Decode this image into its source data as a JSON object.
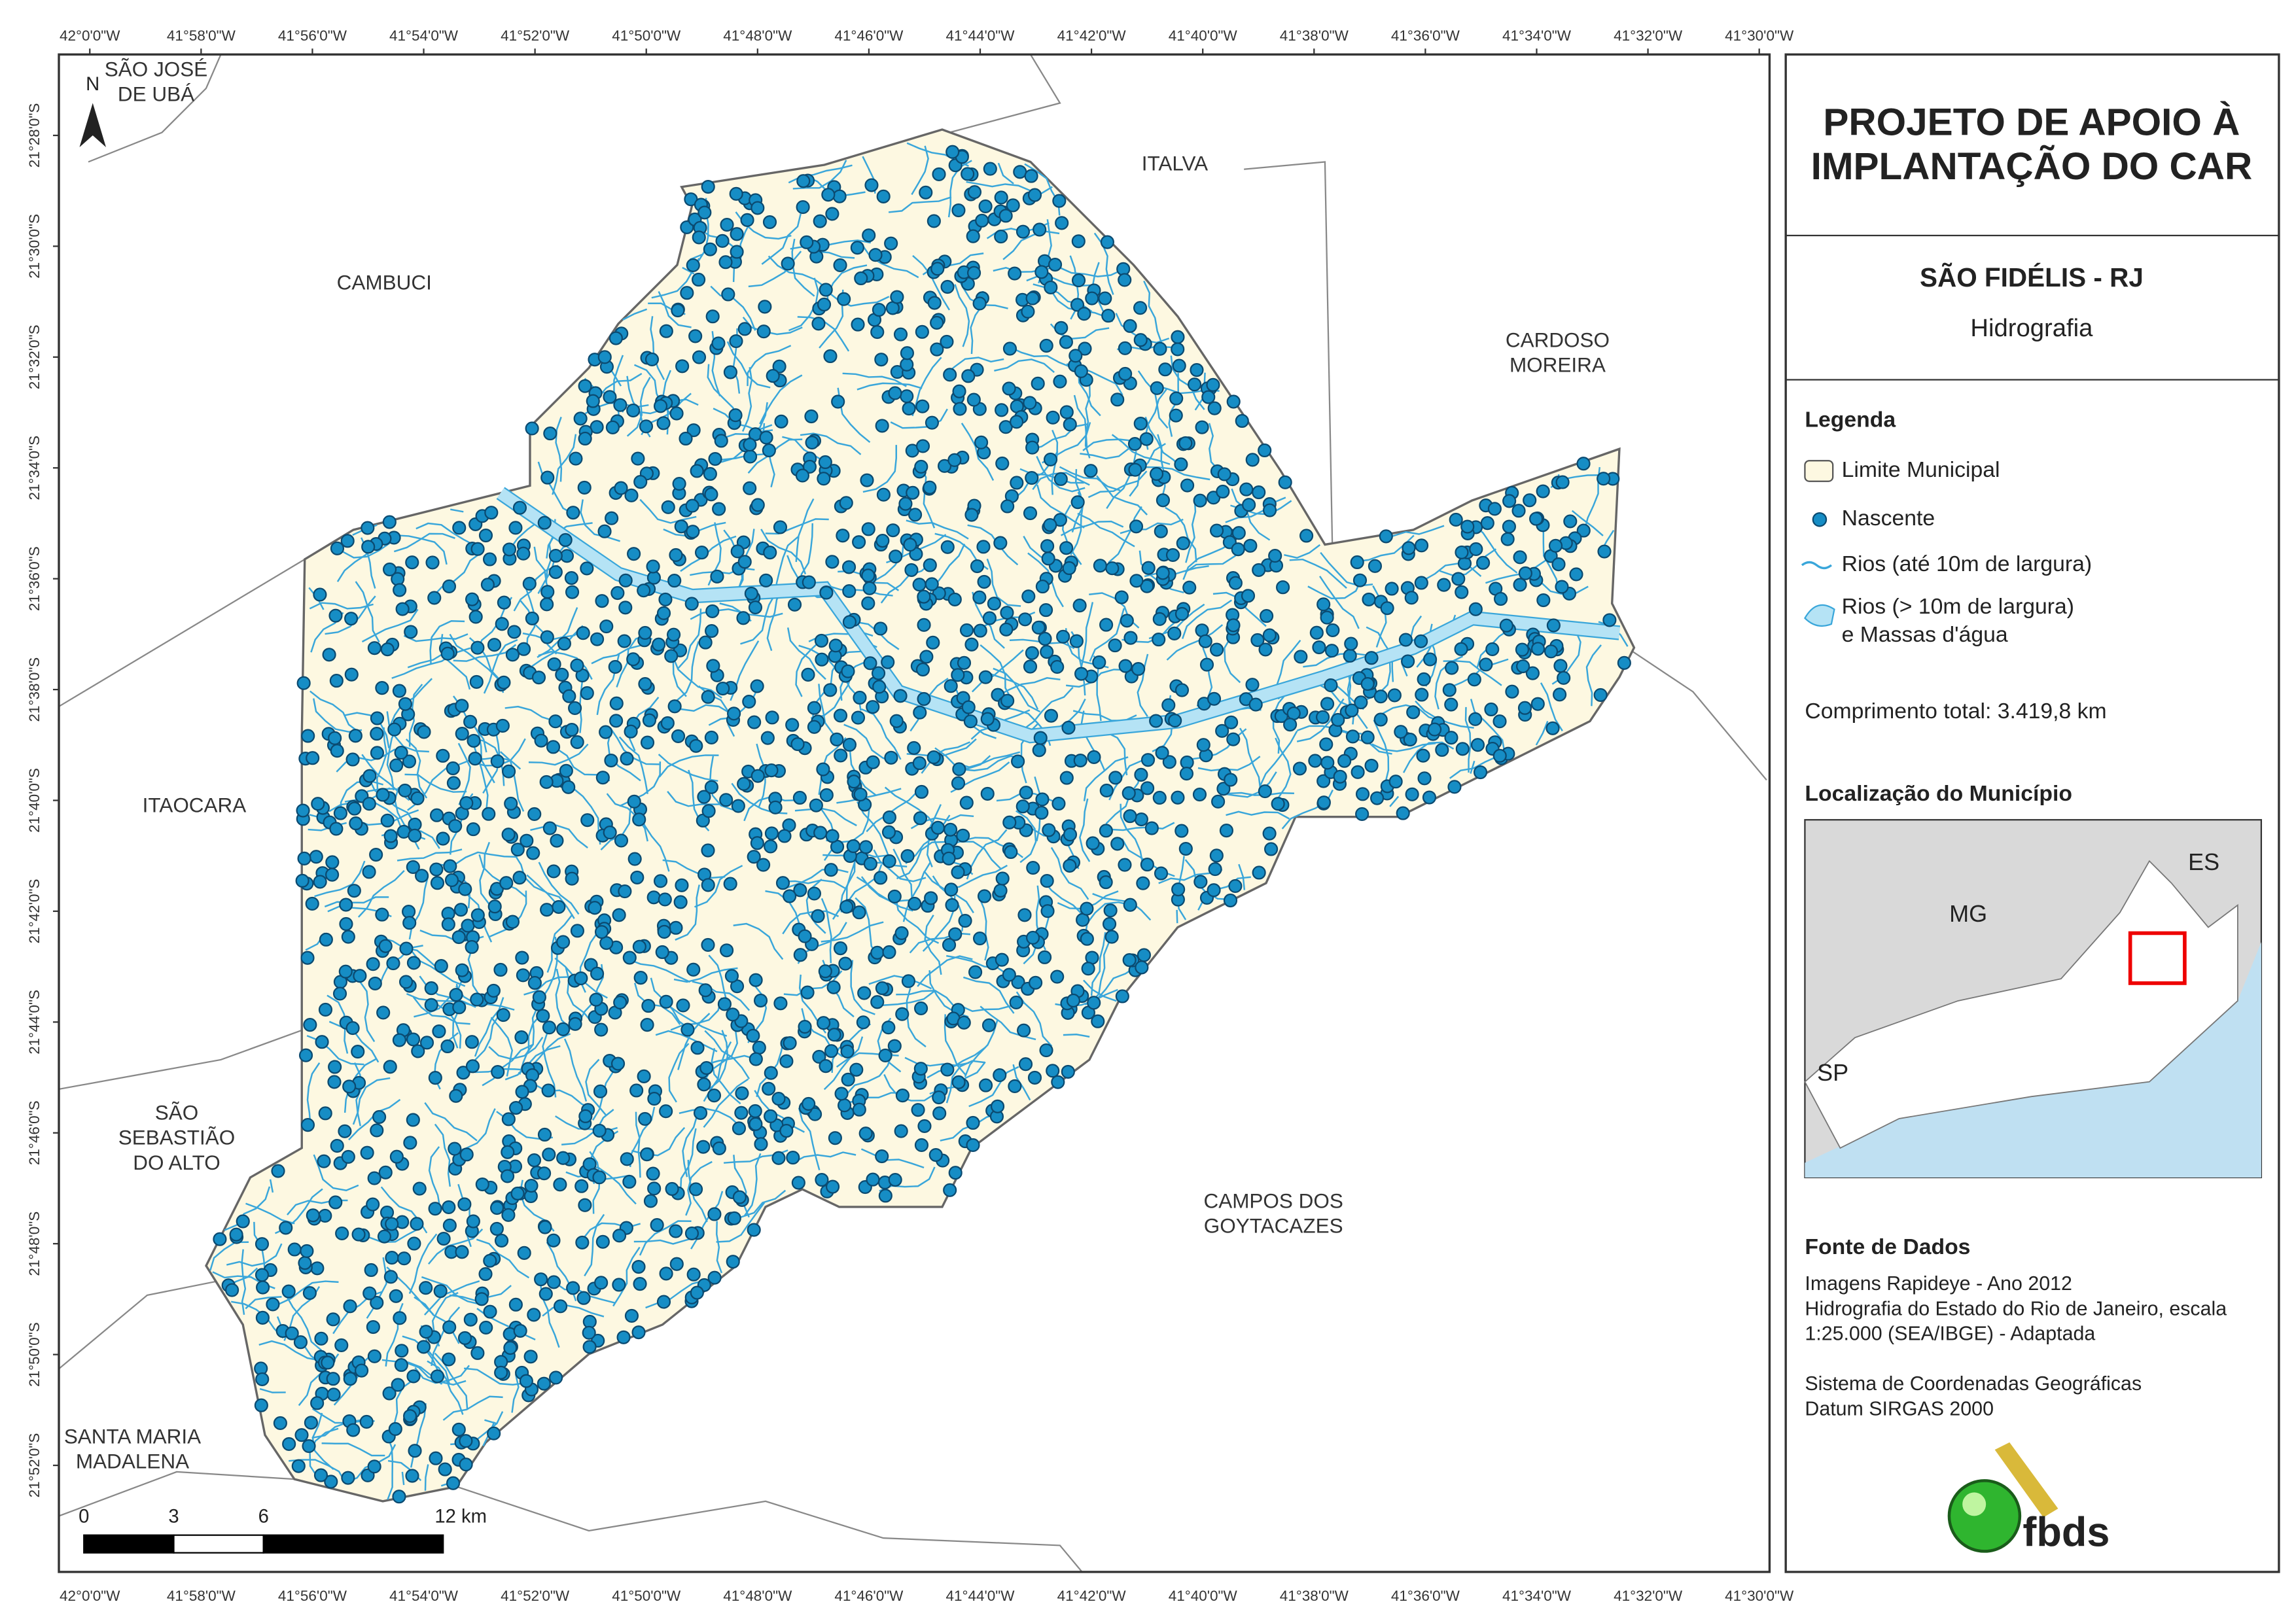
{
  "header": {
    "title": [
      "PROJETO DE APOIO À",
      "IMPLANTAÇÃO DO CAR"
    ],
    "municipality": "SÃO FIDÉLIS - RJ",
    "theme": "Hidrografia"
  },
  "legend": {
    "title": "Legenda",
    "items": [
      [
        "Limite Municipal"
      ],
      [
        "Nascente"
      ],
      [
        "Rios (até 10m de largura)"
      ],
      [
        "Rios (> 10m de largura)",
        "e Massas d'água"
      ]
    ],
    "total_length": "Comprimento total:  3.419,8 km"
  },
  "location": {
    "title": "Localização do Município",
    "labels": [
      "ES",
      "MG",
      "SP"
    ]
  },
  "sources": {
    "title": "Fonte de Dados",
    "lines": [
      "Imagens Rapideye - Ano 2012",
      "Hidrografia do Estado do Rio de Janeiro, escala",
      "1:25.000 (SEA/IBGE) - Adaptada",
      "",
      "Sistema de Coordenadas Geográficas",
      "Datum SIRGAS 2000"
    ]
  },
  "map": {
    "x_labels": [
      "42°0'0\"W",
      "41°58'0\"W",
      "41°56'0\"W",
      "41°54'0\"W",
      "41°52'0\"W",
      "41°50'0\"W",
      "41°48'0\"W",
      "41°46'0\"W",
      "41°44'0\"W",
      "41°42'0\"W",
      "41°40'0\"W",
      "41°38'0\"W",
      "41°36'0\"W",
      "41°34'0\"W",
      "41°32'0\"W",
      "41°30'0\"W"
    ],
    "y_labels": [
      "21°28'0\"S",
      "21°30'0\"S",
      "21°32'0\"S",
      "21°34'0\"S",
      "21°36'0\"S",
      "21°38'0\"S",
      "21°40'0\"S",
      "21°42'0\"S",
      "21°44'0\"S",
      "21°46'0\"S",
      "21°48'0\"S",
      "21°50'0\"S",
      "21°52'0\"S"
    ],
    "neighbors": [
      [
        "SÃO JOSÉ",
        "DE UBÁ"
      ],
      [
        "ITALVA"
      ],
      [
        "CAMBUCI"
      ],
      [
        "CARDOSO",
        "MOREIRA"
      ],
      [
        "ITAOCARA"
      ],
      [
        "SÃO",
        "SEBASTIÃO",
        "DO ALTO"
      ],
      [
        "CAMPOS DOS",
        "GOYTACAZES"
      ],
      [
        "SANTA MARIA",
        "MADALENA"
      ]
    ],
    "north": "N",
    "scale": [
      "0",
      "3",
      "6",
      "12 km"
    ]
  },
  "logo": "fbds"
}
